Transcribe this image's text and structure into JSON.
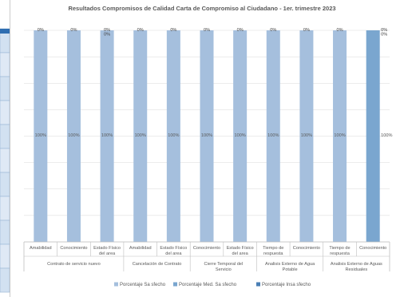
{
  "chart_data": {
    "type": "bar",
    "stacked": true,
    "title": "Resultados Compromisos de Calidad Carta de Compromiso al Ciudadano - 1er. trimestre  2023",
    "categories": [
      "Amabilidad",
      "Conocimiento",
      "Estado Físico del area",
      "Amabilidad",
      "Estado Físico del area",
      "Conocimiento",
      "Estado Físico del area",
      "Tiempo de respuesta",
      "Conocimiento",
      "Tiempo de respuesta",
      "Conocimiento"
    ],
    "groups": [
      {
        "label": "Contrato de servicio nuevo",
        "count": 3
      },
      {
        "label": "Cancelación de Contrato",
        "count": 2
      },
      {
        "label": "Cierre Temporal del Servicio",
        "count": 2
      },
      {
        "label": "Analisis Externo de Agua Potable",
        "count": 2
      },
      {
        "label": "Analisis Externo de Aguas Residuales",
        "count": 2
      }
    ],
    "series": [
      {
        "name": "Porcentaje Sa   sfecho",
        "values": [
          100,
          100,
          100,
          100,
          100,
          100,
          100,
          100,
          100,
          100,
          0
        ],
        "color": "#a5bfdd"
      },
      {
        "name": "Porcentaje  Med. Sa   sfecho",
        "values": [
          0,
          0,
          0,
          0,
          0,
          0,
          0,
          0,
          0,
          0,
          100
        ],
        "color": "#7aa6cf"
      },
      {
        "name": "Porcentaje Insa   sfecho",
        "values": [
          0,
          0,
          0,
          0,
          0,
          0,
          0,
          0,
          0,
          0,
          0
        ],
        "color": "#4a7fb5"
      }
    ],
    "mid_labels": [
      "100%",
      "100%",
      "100%",
      "100%",
      "100%",
      "100%",
      "100%",
      "100%",
      "100%",
      "100%",
      "100%"
    ],
    "top_labels": [
      [
        "0%"
      ],
      [
        "0%"
      ],
      [
        "0%",
        "0%"
      ],
      [
        "0%"
      ],
      [
        "0%"
      ],
      [
        "0%"
      ],
      [
        "0%"
      ],
      [
        "0%"
      ],
      [
        "0%"
      ],
      [
        "0%"
      ],
      [
        "0%",
        "0%"
      ]
    ],
    "ylim": [
      0,
      100
    ],
    "grid": true,
    "legend_position": "bottom"
  }
}
